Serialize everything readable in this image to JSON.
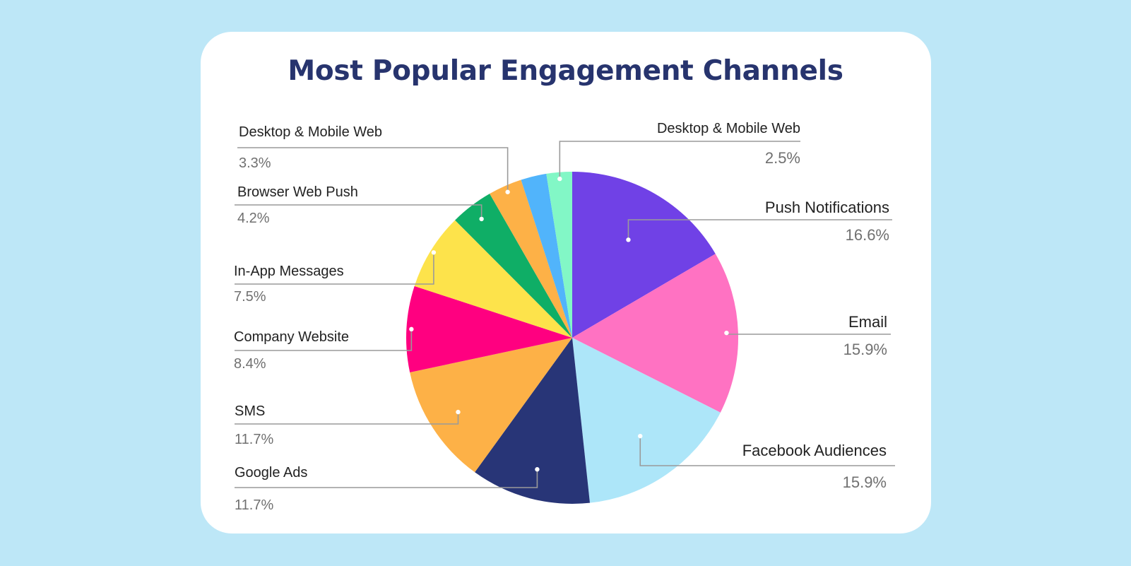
{
  "colors": {
    "background": "#bde7f7",
    "card": "#ffffff",
    "title": "#27346e",
    "leader_line": "#9a9a9a",
    "label_text": "#222222",
    "value_text": "#707070"
  },
  "chart_data": {
    "type": "pie",
    "title": "Most Popular Engagement Channels",
    "start_angle_deg": 0,
    "direction": "clockwise",
    "slices": [
      {
        "label": "Push Notifications",
        "value": 16.6,
        "value_text": "16.6%",
        "color": "#7041e6"
      },
      {
        "label": "Email",
        "value": 15.9,
        "value_text": "15.9%",
        "color": "#ff72c2"
      },
      {
        "label": "Facebook Audiences",
        "value": 15.9,
        "value_text": "15.9%",
        "color": "#ade6f9"
      },
      {
        "label": "Google Ads",
        "value": 11.7,
        "value_text": "11.7%",
        "color": "#283577"
      },
      {
        "label": "SMS",
        "value": 11.7,
        "value_text": "11.7%",
        "color": "#fdb147"
      },
      {
        "label": "Company Website",
        "value": 8.4,
        "value_text": "8.4%",
        "color": "#ff0080"
      },
      {
        "label": "In-App Messages",
        "value": 7.5,
        "value_text": "7.5%",
        "color": "#fde34b"
      },
      {
        "label": "Browser Web Push",
        "value": 4.2,
        "value_text": "4.2%",
        "color": "#0fae66"
      },
      {
        "label": "Desktop & Mobile Web",
        "value": 3.3,
        "value_text": "3.3%",
        "color": "#fdb147"
      },
      {
        "label": "",
        "value": 2.5,
        "value_text": "",
        "color": "#51b4fb"
      },
      {
        "label": "Desktop & Mobile Web",
        "value": 2.5,
        "value_text": "2.5%",
        "color": "#82f7c6"
      }
    ]
  }
}
